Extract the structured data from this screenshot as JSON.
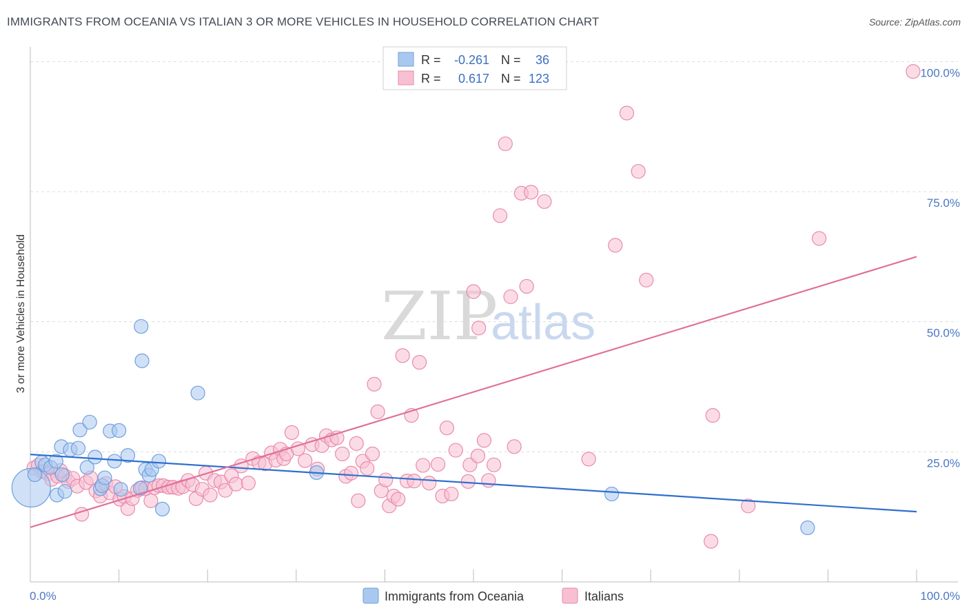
{
  "header": {
    "title": "IMMIGRANTS FROM OCEANIA VS ITALIAN 3 OR MORE VEHICLES IN HOUSEHOLD CORRELATION CHART",
    "source": "Source: ZipAtlas.com"
  },
  "watermark": {
    "part1": "ZIP",
    "part2": "atlas"
  },
  "legend_top": {
    "rows": [
      {
        "r_label": "R =",
        "r_value": "-0.261",
        "n_label": "N =",
        "n_value": "36",
        "color": "#a9c8f0",
        "stroke": "#6f9fdc"
      },
      {
        "r_label": "R =",
        "r_value": "0.617",
        "n_label": "N =",
        "n_value": "123",
        "color": "#f7bfd2",
        "stroke": "#e88aab"
      }
    ]
  },
  "legend_bottom": [
    {
      "label": "Immigrants from Oceania",
      "color": "#a9c8f0",
      "stroke": "#6f9fdc"
    },
    {
      "label": "Italians",
      "color": "#f7bfd2",
      "stroke": "#e88aab"
    }
  ],
  "chart_data": {
    "type": "scatter",
    "ylabel": "3 or more Vehicles in Household",
    "x_tick_labels": [
      "0.0%",
      "100.0%"
    ],
    "y_tick_labels": [
      "25.0%",
      "50.0%",
      "75.0%",
      "100.0%"
    ],
    "xlim": [
      0,
      100
    ],
    "ylim": [
      0,
      101.5
    ],
    "grid": true,
    "series": [
      {
        "name": "Immigrants from Oceania",
        "color": "#a9c8f0",
        "stroke": "#6f9fdc",
        "line_color": "#2f6fcf",
        "trend": {
          "x": [
            0,
            100
          ],
          "y": [
            24.5,
            13.5
          ]
        },
        "points": [
          [
            0.1,
            18.1,
            28
          ],
          [
            0.5,
            20.6,
            10
          ],
          [
            1.3,
            23.0,
            10
          ],
          [
            1.7,
            22.5,
            10
          ],
          [
            2.3,
            22.0,
            10
          ],
          [
            2.9,
            23.2,
            10
          ],
          [
            3.0,
            16.7,
            10
          ],
          [
            3.5,
            26.0,
            10
          ],
          [
            3.6,
            20.6,
            10
          ],
          [
            3.9,
            17.4,
            10
          ],
          [
            4.5,
            25.4,
            10
          ],
          [
            5.4,
            25.7,
            10
          ],
          [
            5.6,
            29.2,
            10
          ],
          [
            6.4,
            22.0,
            10
          ],
          [
            6.7,
            30.7,
            10
          ],
          [
            7.3,
            24.0,
            10
          ],
          [
            7.9,
            17.9,
            10
          ],
          [
            8.1,
            18.5,
            10
          ],
          [
            8.4,
            20.0,
            10
          ],
          [
            9.0,
            29.0,
            10
          ],
          [
            9.5,
            23.2,
            10
          ],
          [
            10.0,
            29.1,
            10
          ],
          [
            10.2,
            17.8,
            10
          ],
          [
            11.0,
            24.3,
            10
          ],
          [
            12.4,
            18.0,
            10
          ],
          [
            12.5,
            49.1,
            10
          ],
          [
            12.6,
            42.5,
            10
          ],
          [
            13.0,
            21.6,
            10
          ],
          [
            13.4,
            20.5,
            10
          ],
          [
            13.7,
            21.6,
            10
          ],
          [
            14.9,
            14.0,
            10
          ],
          [
            14.5,
            23.2,
            10
          ],
          [
            18.9,
            36.3,
            10
          ],
          [
            32.3,
            21.0,
            10
          ],
          [
            65.6,
            16.9,
            10
          ],
          [
            87.7,
            10.4,
            10
          ]
        ]
      },
      {
        "name": "Italians",
        "color": "#f7bfd2",
        "stroke": "#e88aab",
        "line_color": "#e0709a",
        "trend": {
          "x": [
            0,
            100
          ],
          "y": [
            10.5,
            62.5
          ]
        },
        "points": [
          [
            0.4,
            21.9,
            10
          ],
          [
            0.9,
            22.4,
            10
          ],
          [
            1.3,
            21.2,
            10
          ],
          [
            1.6,
            21.2,
            10
          ],
          [
            2.0,
            20.8,
            10
          ],
          [
            2.4,
            19.7,
            10
          ],
          [
            3.1,
            20.3,
            10
          ],
          [
            3.4,
            21.4,
            10
          ],
          [
            3.9,
            20.4,
            10
          ],
          [
            4.3,
            19.3,
            10
          ],
          [
            4.8,
            19.9,
            10
          ],
          [
            5.3,
            18.4,
            10
          ],
          [
            5.8,
            13.0,
            10
          ],
          [
            6.3,
            19.1,
            10
          ],
          [
            6.8,
            20.0,
            10
          ],
          [
            7.4,
            17.5,
            10
          ],
          [
            7.9,
            16.5,
            10
          ],
          [
            8.5,
            18.9,
            10
          ],
          [
            9.0,
            17.1,
            10
          ],
          [
            9.6,
            18.3,
            10
          ],
          [
            10.1,
            15.9,
            10
          ],
          [
            10.6,
            16.4,
            10
          ],
          [
            11.0,
            14.1,
            10
          ],
          [
            11.5,
            16.0,
            10
          ],
          [
            12.1,
            17.6,
            10
          ],
          [
            12.6,
            18.1,
            10
          ],
          [
            13.0,
            17.9,
            10
          ],
          [
            13.6,
            15.6,
            10
          ],
          [
            14.0,
            18.1,
            10
          ],
          [
            14.5,
            18.5,
            10
          ],
          [
            15.0,
            18.5,
            10
          ],
          [
            15.6,
            18.2,
            10
          ],
          [
            16.1,
            18.2,
            10
          ],
          [
            16.7,
            18.0,
            10
          ],
          [
            17.2,
            18.3,
            10
          ],
          [
            17.8,
            19.5,
            10
          ],
          [
            18.3,
            18.7,
            10
          ],
          [
            18.7,
            16.0,
            10
          ],
          [
            19.4,
            17.8,
            10
          ],
          [
            19.8,
            20.9,
            10
          ],
          [
            20.3,
            16.7,
            10
          ],
          [
            20.8,
            19.5,
            10
          ],
          [
            21.5,
            19.2,
            10
          ],
          [
            22.0,
            17.6,
            10
          ],
          [
            22.7,
            20.4,
            10
          ],
          [
            23.2,
            18.8,
            10
          ],
          [
            23.8,
            22.3,
            10
          ],
          [
            24.6,
            19.0,
            10
          ],
          [
            25.1,
            23.7,
            10
          ],
          [
            25.8,
            22.9,
            10
          ],
          [
            26.5,
            22.7,
            10
          ],
          [
            27.2,
            24.8,
            10
          ],
          [
            27.7,
            23.4,
            10
          ],
          [
            28.2,
            25.5,
            10
          ],
          [
            28.6,
            23.7,
            10
          ],
          [
            29.5,
            28.7,
            10
          ],
          [
            30.2,
            25.6,
            10
          ],
          [
            31.0,
            23.3,
            10
          ],
          [
            31.8,
            26.4,
            10
          ],
          [
            32.4,
            21.7,
            10
          ],
          [
            32.9,
            26.2,
            10
          ],
          [
            33.4,
            28.1,
            10
          ],
          [
            34.0,
            27.3,
            10
          ],
          [
            34.6,
            27.7,
            10
          ],
          [
            35.2,
            24.6,
            10
          ],
          [
            35.6,
            20.3,
            10
          ],
          [
            36.2,
            20.9,
            10
          ],
          [
            36.8,
            26.6,
            10
          ],
          [
            37.5,
            23.2,
            10
          ],
          [
            38.0,
            21.8,
            10
          ],
          [
            38.6,
            24.6,
            10
          ],
          [
            38.8,
            38.0,
            10
          ],
          [
            39.2,
            32.7,
            10
          ],
          [
            39.6,
            17.5,
            10
          ],
          [
            40.1,
            19.6,
            10
          ],
          [
            40.5,
            14.6,
            10
          ],
          [
            41.0,
            16.5,
            10
          ],
          [
            41.5,
            15.9,
            10
          ],
          [
            42.0,
            43.5,
            10
          ],
          [
            42.5,
            19.4,
            10
          ],
          [
            43.0,
            32.0,
            10
          ],
          [
            43.3,
            19.4,
            10
          ],
          [
            43.9,
            42.2,
            10
          ],
          [
            44.3,
            22.4,
            10
          ],
          [
            45.0,
            19.0,
            10
          ],
          [
            46.0,
            22.6,
            10
          ],
          [
            46.5,
            16.5,
            10
          ],
          [
            47.0,
            29.6,
            10
          ],
          [
            47.5,
            16.9,
            10
          ],
          [
            48.0,
            25.3,
            10
          ],
          [
            49.4,
            19.3,
            10
          ],
          [
            49.6,
            22.5,
            10
          ],
          [
            50.0,
            55.8,
            10
          ],
          [
            50.6,
            48.8,
            10
          ],
          [
            51.2,
            27.2,
            10
          ],
          [
            51.7,
            19.5,
            10
          ],
          [
            52.3,
            22.5,
            10
          ],
          [
            53.0,
            70.4,
            10
          ],
          [
            53.6,
            84.2,
            10
          ],
          [
            54.2,
            54.8,
            10
          ],
          [
            54.6,
            26.0,
            10
          ],
          [
            55.4,
            74.7,
            10
          ],
          [
            56.0,
            56.8,
            10
          ],
          [
            56.5,
            74.9,
            10
          ],
          [
            58.0,
            73.1,
            10
          ],
          [
            63.0,
            23.6,
            10
          ],
          [
            66.0,
            64.7,
            10
          ],
          [
            67.3,
            90.1,
            10
          ],
          [
            68.6,
            78.9,
            10
          ],
          [
            69.5,
            58.0,
            10
          ],
          [
            76.8,
            7.8,
            10
          ],
          [
            77.0,
            32.0,
            10
          ],
          [
            81.0,
            14.6,
            10
          ],
          [
            89.0,
            66.0,
            10
          ],
          [
            99.6,
            98.1,
            10
          ],
          [
            50.5,
            24.2,
            10
          ],
          [
            28.9,
            24.6,
            10
          ],
          [
            37.0,
            15.6,
            10
          ]
        ]
      }
    ]
  }
}
